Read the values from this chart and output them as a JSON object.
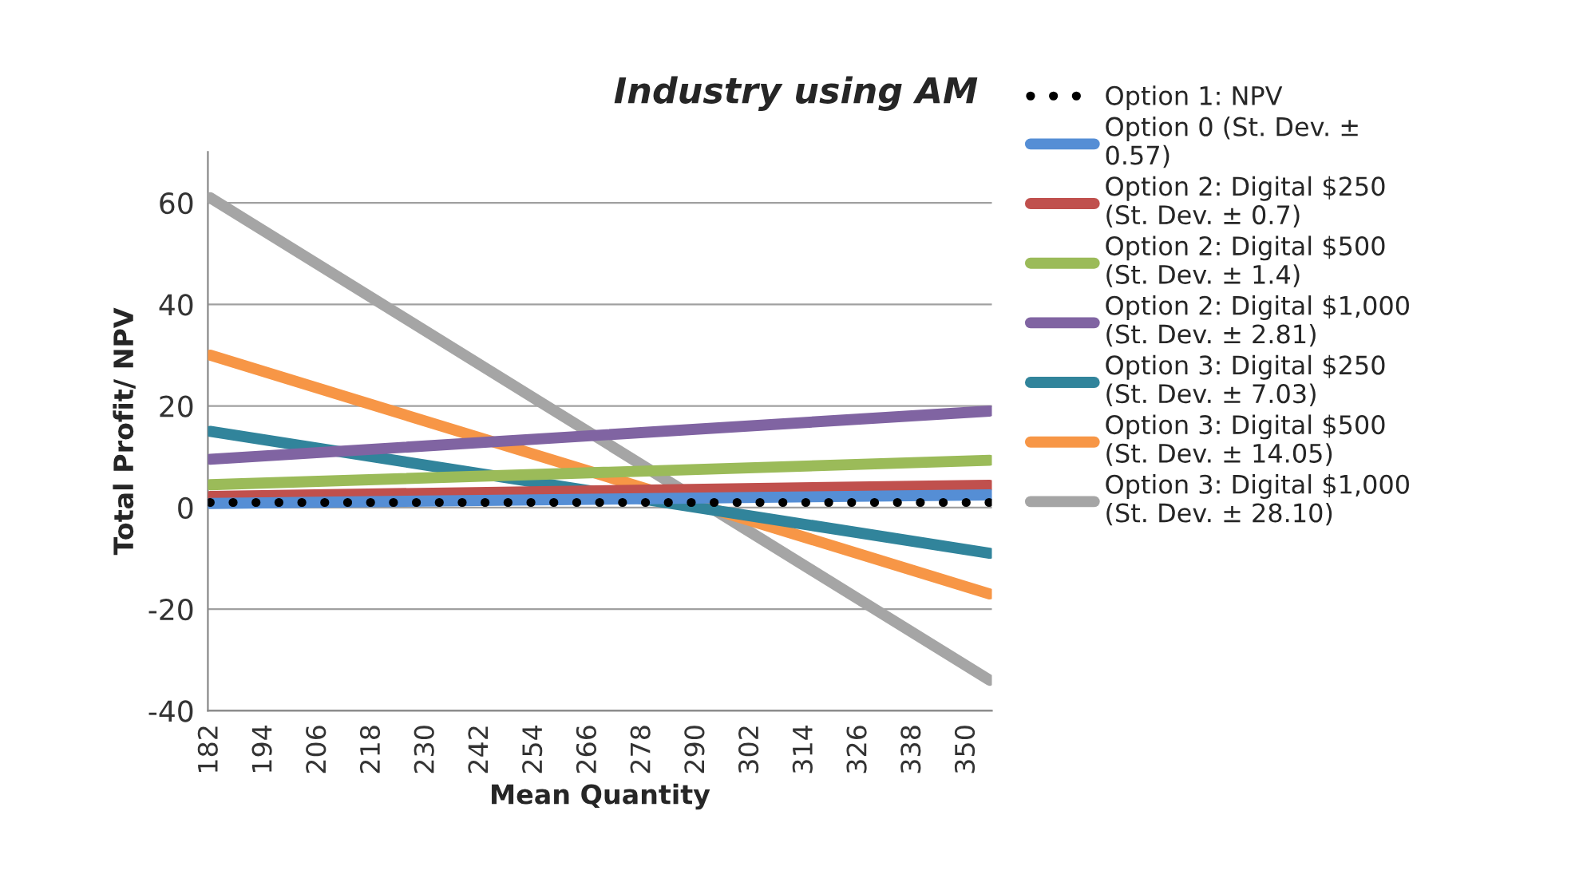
{
  "chart_data": {
    "type": "line",
    "title": "Industry using AM",
    "xlabel": "Mean Quantity",
    "ylabel": "Total Profit/ NPV",
    "x": [
      182,
      355
    ],
    "xlim": [
      181.5,
      355.5
    ],
    "xticks": [
      182,
      194,
      206,
      218,
      230,
      242,
      254,
      266,
      278,
      290,
      302,
      314,
      326,
      338,
      350
    ],
    "ylim": [
      -40,
      70
    ],
    "yticks": [
      -40,
      -20,
      0,
      20,
      40,
      60
    ],
    "grid": "y",
    "legend": "right",
    "marker": "none",
    "series": [
      {
        "name": "Option 1: NPV",
        "color": "#000000",
        "values": [
          1,
          1
        ],
        "line_style": "dotted"
      },
      {
        "name": "Option 0 (St. Dev. ±\n0.57)",
        "color": "#558ed5",
        "values": [
          0.8,
          2.5
        ]
      },
      {
        "name": "Option 2: Digital $250\n(St. Dev. ± 0.7)",
        "color": "#c0504d",
        "values": [
          2.2,
          4.4
        ]
      },
      {
        "name": "Option 2: Digital $500\n(St. Dev. ± 1.4)",
        "color": "#9bbb59",
        "values": [
          4.5,
          9.3
        ]
      },
      {
        "name": "Option 2: Digital $1,000\n(St. Dev. ± 2.81)",
        "color": "#8064a2",
        "values": [
          9.5,
          19
        ]
      },
      {
        "name": "Option 3: Digital $250\n(St. Dev. ± 7.03)",
        "color": "#31849b",
        "values": [
          15,
          -9
        ]
      },
      {
        "name": "Option 3: Digital $500\n(St. Dev. ± 14.05)",
        "color": "#f79646",
        "values": [
          30,
          -17
        ]
      },
      {
        "name": "Option 3: Digital $1,000\n(St. Dev. ± 28.10)",
        "color": "#a5a5a5",
        "values": [
          61,
          -34
        ]
      }
    ]
  }
}
